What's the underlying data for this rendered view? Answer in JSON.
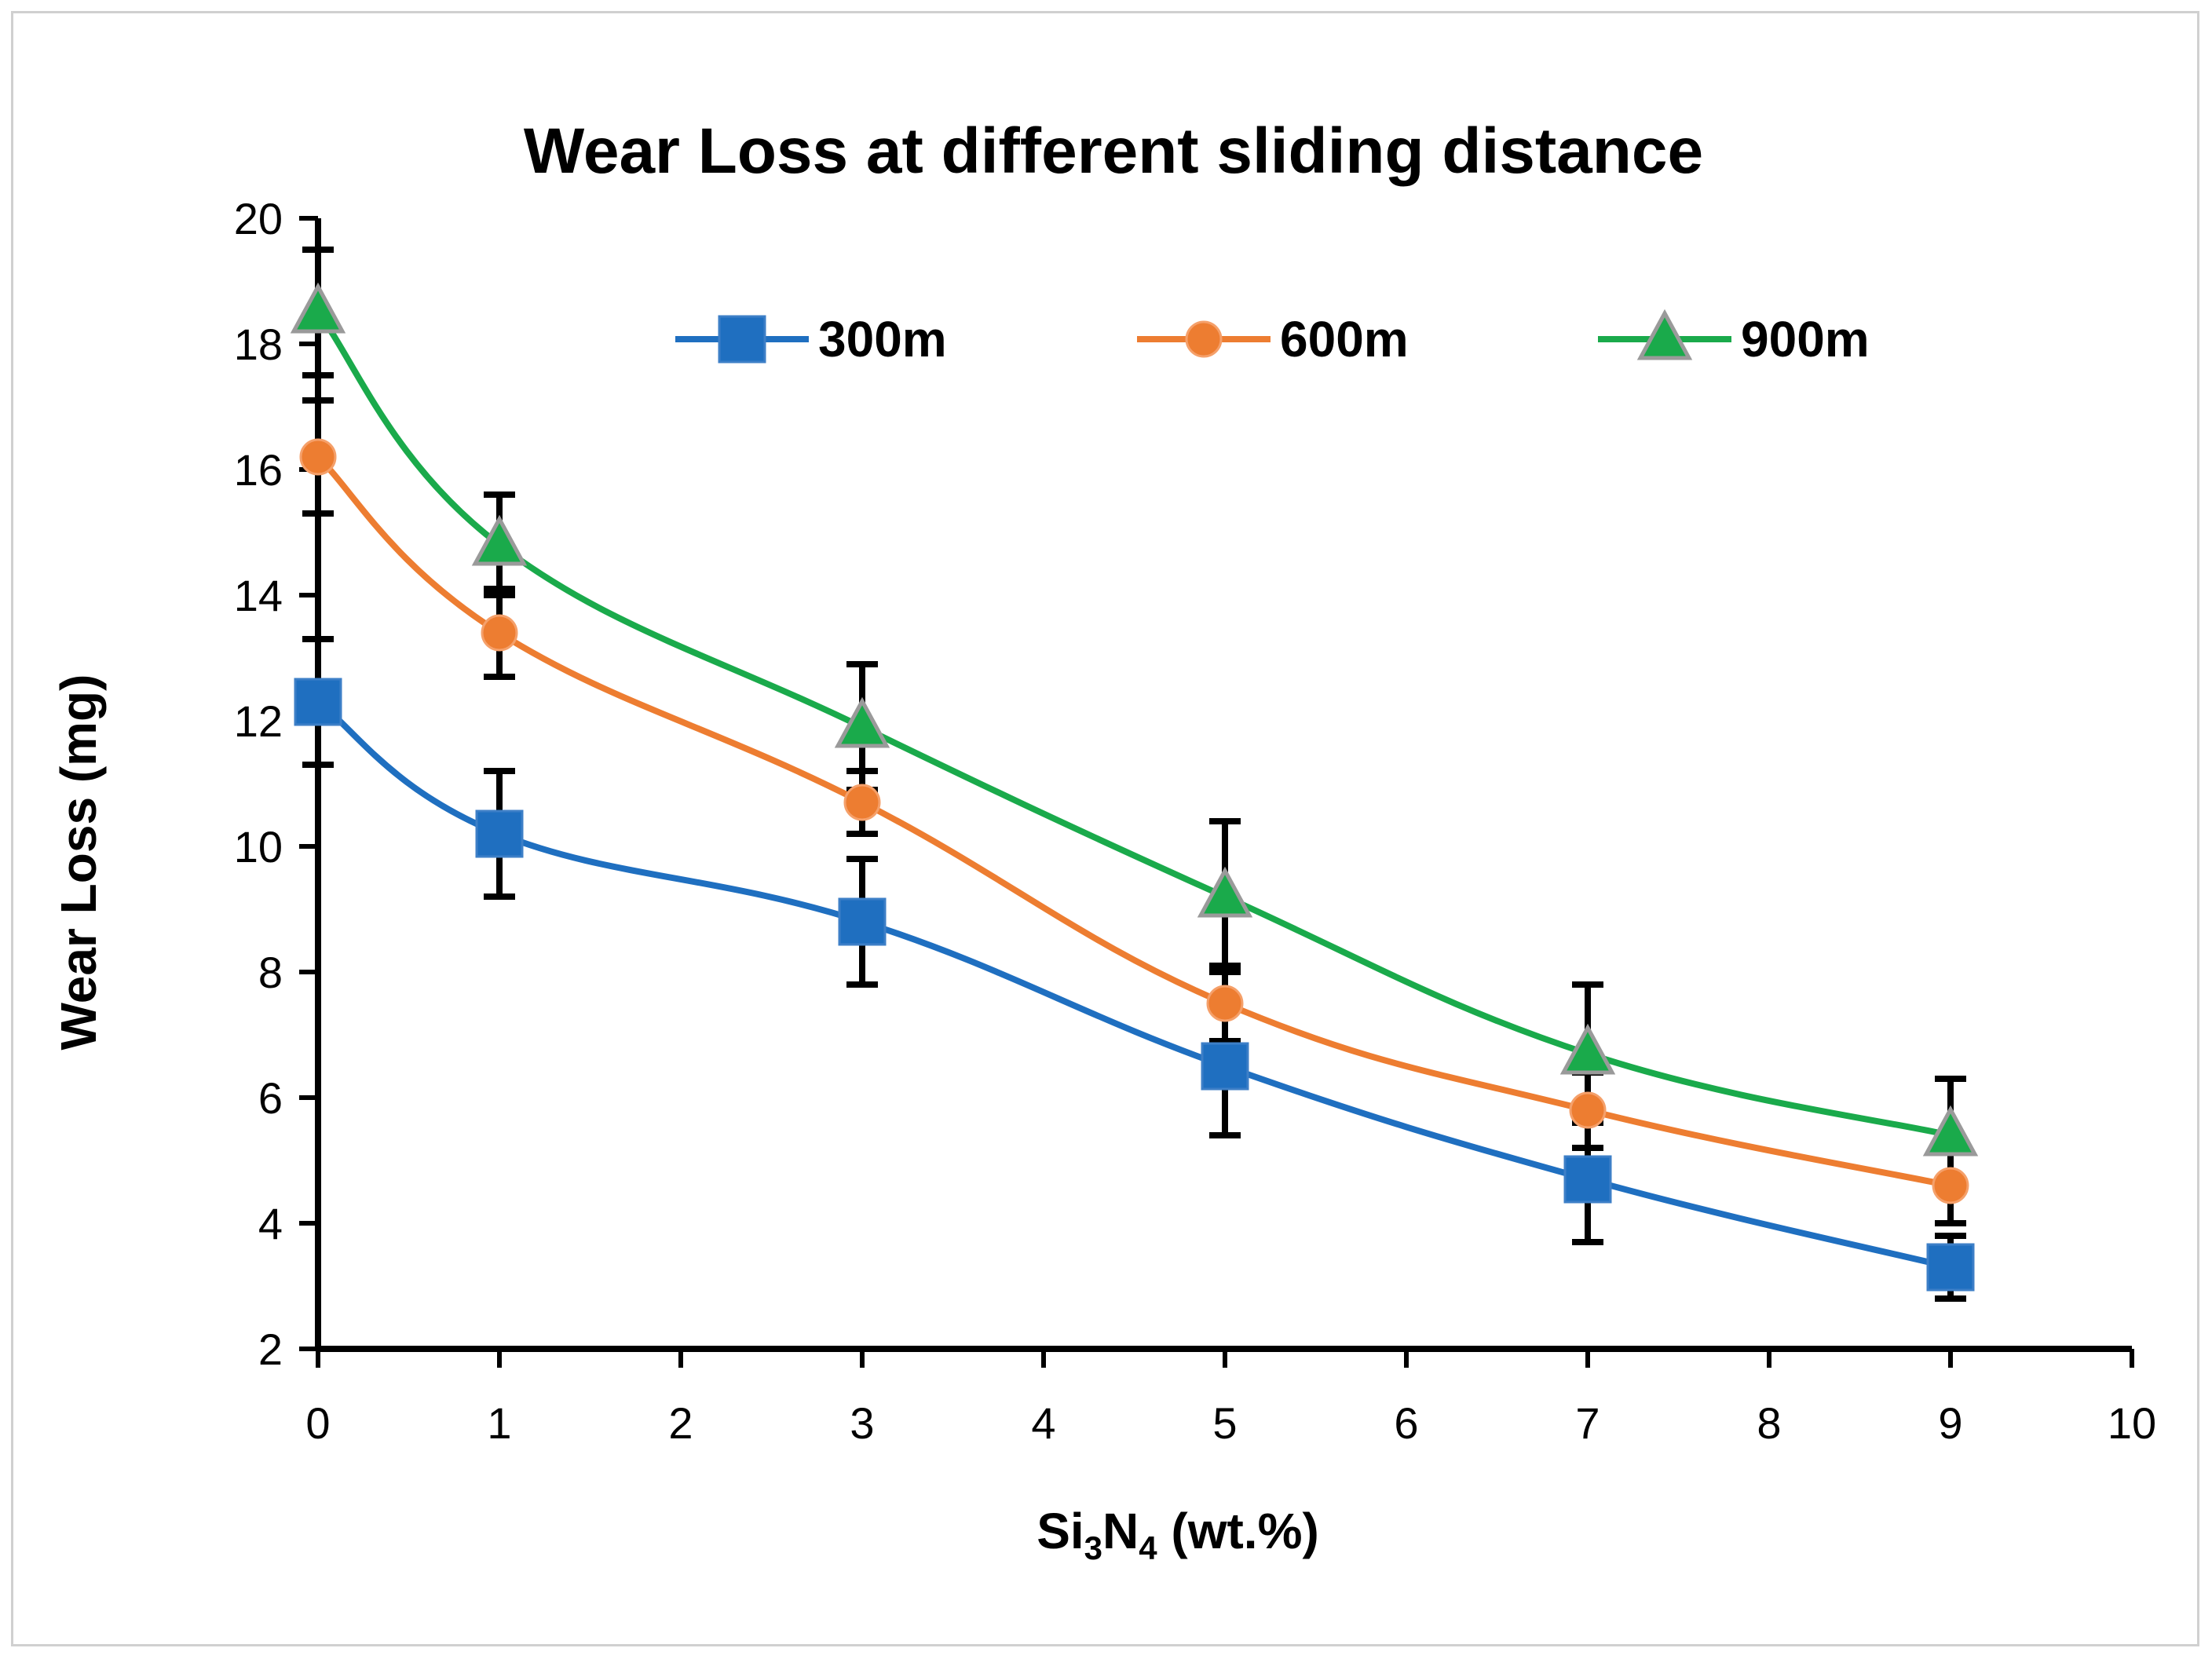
{
  "chart_data": {
    "type": "line",
    "title": "Wear Loss at different sliding distance",
    "xlabel": {
      "base": "Si",
      "sub1": "3",
      "mid": "N",
      "sub2": "4",
      "rest": " (wt.%)"
    },
    "ylabel": "Wear Loss (mg)",
    "xlim": [
      0,
      10
    ],
    "ylim": [
      2,
      20
    ],
    "xticks": [
      0,
      1,
      2,
      3,
      4,
      5,
      6,
      7,
      8,
      9,
      10
    ],
    "yticks": [
      2,
      4,
      6,
      8,
      10,
      12,
      14,
      16,
      18,
      20
    ],
    "legend_position": "top",
    "x": [
      0,
      1,
      3,
      5,
      7,
      9
    ],
    "series": [
      {
        "name": "300m",
        "color": "#1f6fc0",
        "marker": "square",
        "values": [
          12.3,
          10.2,
          8.8,
          6.5,
          4.7,
          3.3
        ],
        "errors": [
          1.0,
          1.0,
          1.0,
          1.1,
          1.0,
          0.5
        ]
      },
      {
        "name": "600m",
        "color": "#ed7d31",
        "marker": "circle",
        "values": [
          16.2,
          13.4,
          10.7,
          7.5,
          5.8,
          4.6
        ],
        "errors": [
          0.9,
          0.7,
          0.5,
          0.6,
          0.6,
          0.6
        ]
      },
      {
        "name": "900m",
        "color": "#1aaa4b",
        "marker": "triangle",
        "values": [
          18.5,
          14.8,
          11.9,
          9.2,
          6.7,
          5.4
        ],
        "errors": [
          1.0,
          0.8,
          1.0,
          1.2,
          1.1,
          0.9
        ]
      }
    ]
  }
}
